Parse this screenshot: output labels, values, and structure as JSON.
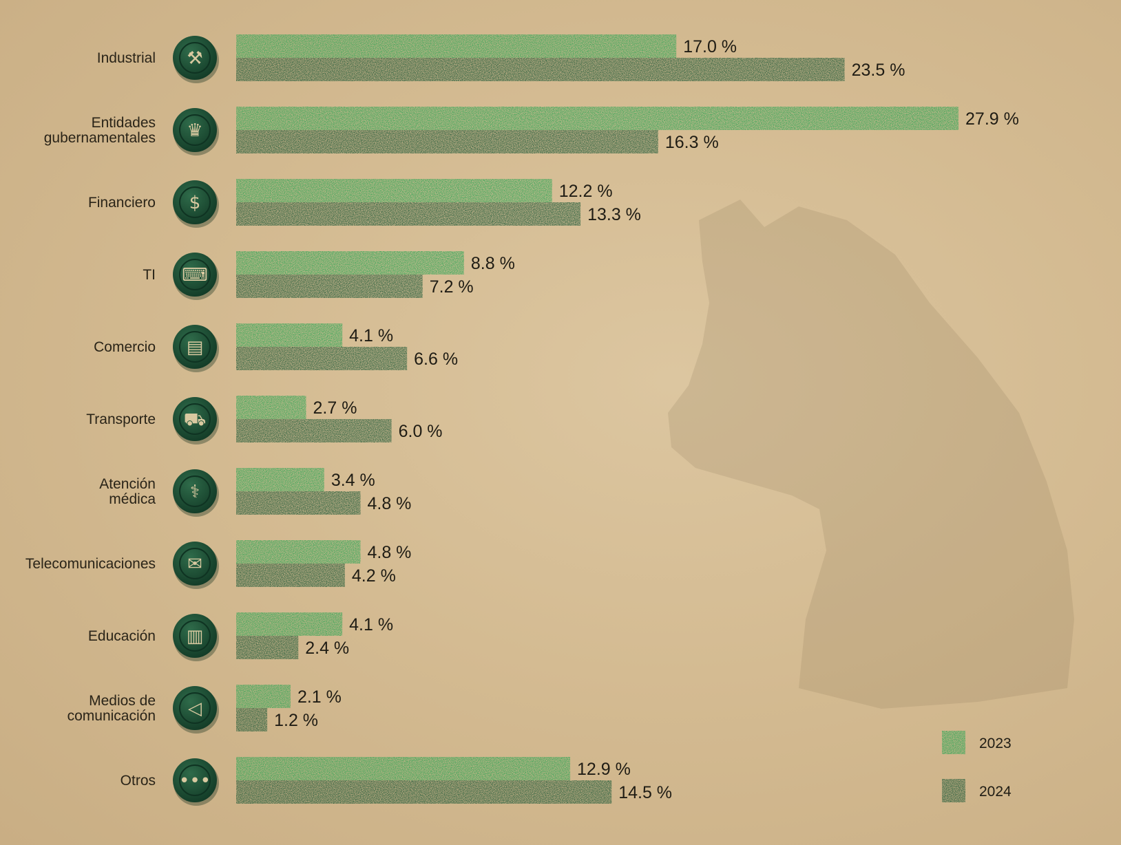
{
  "chart_data": {
    "type": "bar",
    "orientation": "horizontal",
    "categories": [
      [
        "Industrial"
      ],
      [
        "Entidades",
        "gubernamentales"
      ],
      [
        "Financiero"
      ],
      [
        "TI"
      ],
      [
        "Comercio"
      ],
      [
        "Transporte"
      ],
      [
        "Atención",
        "médica"
      ],
      [
        "Telecomunicaciones"
      ],
      [
        "Educación"
      ],
      [
        "Medios de",
        "comunicación"
      ],
      [
        "Otros"
      ]
    ],
    "icons": [
      "anvil-icon",
      "crown-icon",
      "money-bag-icon",
      "scroll-code-icon",
      "shop-icon",
      "cart-icon",
      "medical-bowl-icon",
      "envelope-icon",
      "book-icon",
      "megaphone-icon",
      "ellipsis-icon"
    ],
    "icon_glyphs": [
      "⚒",
      "♛",
      "$",
      "⌨",
      "▤",
      "⛟",
      "⚕",
      "✉",
      "▥",
      "◁",
      "•••"
    ],
    "series": [
      {
        "name": "2023",
        "color": "#27a452",
        "values": [
          17.0,
          27.9,
          12.2,
          8.8,
          4.1,
          2.7,
          3.4,
          4.8,
          4.1,
          2.1,
          12.9
        ],
        "labels": [
          "17.0 %",
          "27.9 %",
          "12.2 %",
          "8.8 %",
          "4.1 %",
          "2.7 %",
          "3.4 %",
          "4.8 %",
          "4.1 %",
          "2.1 %",
          "12.9 %"
        ]
      },
      {
        "name": "2024",
        "color": "#185634",
        "values": [
          23.5,
          16.3,
          13.3,
          7.2,
          6.6,
          6.0,
          4.8,
          4.2,
          2.4,
          1.2,
          14.5
        ],
        "labels": [
          "23.5 %",
          "16.3 %",
          "13.3 %",
          "7.2 %",
          "6.6 %",
          "6.0 %",
          "4.8 %",
          "4.2 %",
          "2.4 %",
          "1.2 %",
          "14.5 %"
        ]
      }
    ],
    "unit": "%",
    "xlim": [
      0,
      30
    ],
    "legend": {
      "position": "bottom-right",
      "entries": [
        "2023",
        "2024"
      ]
    },
    "icon_color": "#1e4a33"
  }
}
